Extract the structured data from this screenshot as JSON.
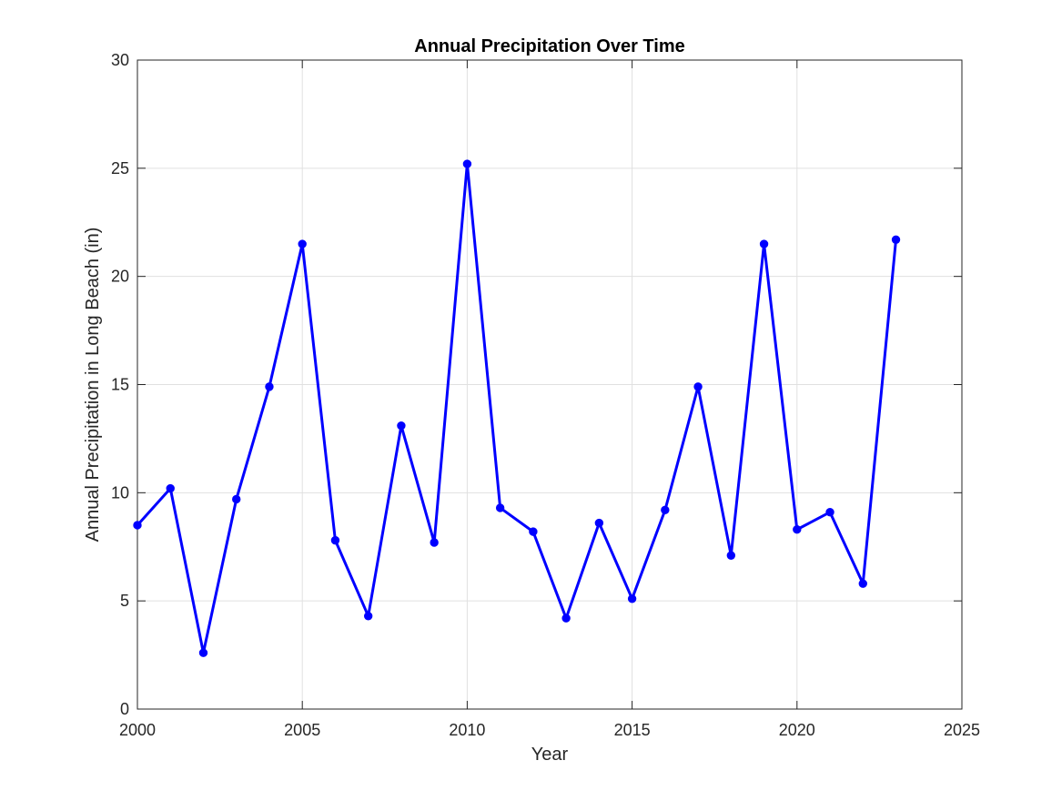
{
  "chart_data": {
    "type": "line",
    "title": "Annual Precipitation Over Time",
    "xlabel": "Year",
    "ylabel": "Annual Precipitation in Long Beach (in)",
    "xlim": [
      2000,
      2025
    ],
    "ylim": [
      0,
      30
    ],
    "xticks": [
      2000,
      2005,
      2010,
      2015,
      2020,
      2025
    ],
    "yticks": [
      0,
      5,
      10,
      15,
      20,
      25,
      30
    ],
    "grid": true,
    "legend": "none",
    "series": [
      {
        "color": "#0000ff",
        "marker": "circle",
        "x": [
          2000,
          2001,
          2002,
          2003,
          2004,
          2005,
          2006,
          2007,
          2008,
          2009,
          2010,
          2011,
          2012,
          2013,
          2014,
          2015,
          2016,
          2017,
          2018,
          2019,
          2020,
          2021,
          2022,
          2023
        ],
        "y": [
          8.5,
          10.2,
          2.6,
          9.7,
          14.9,
          21.5,
          7.8,
          4.3,
          13.1,
          7.7,
          25.2,
          9.3,
          8.2,
          4.2,
          8.6,
          5.1,
          9.2,
          14.9,
          7.1,
          21.5,
          8.3,
          9.1,
          5.8,
          21.7
        ]
      }
    ]
  }
}
